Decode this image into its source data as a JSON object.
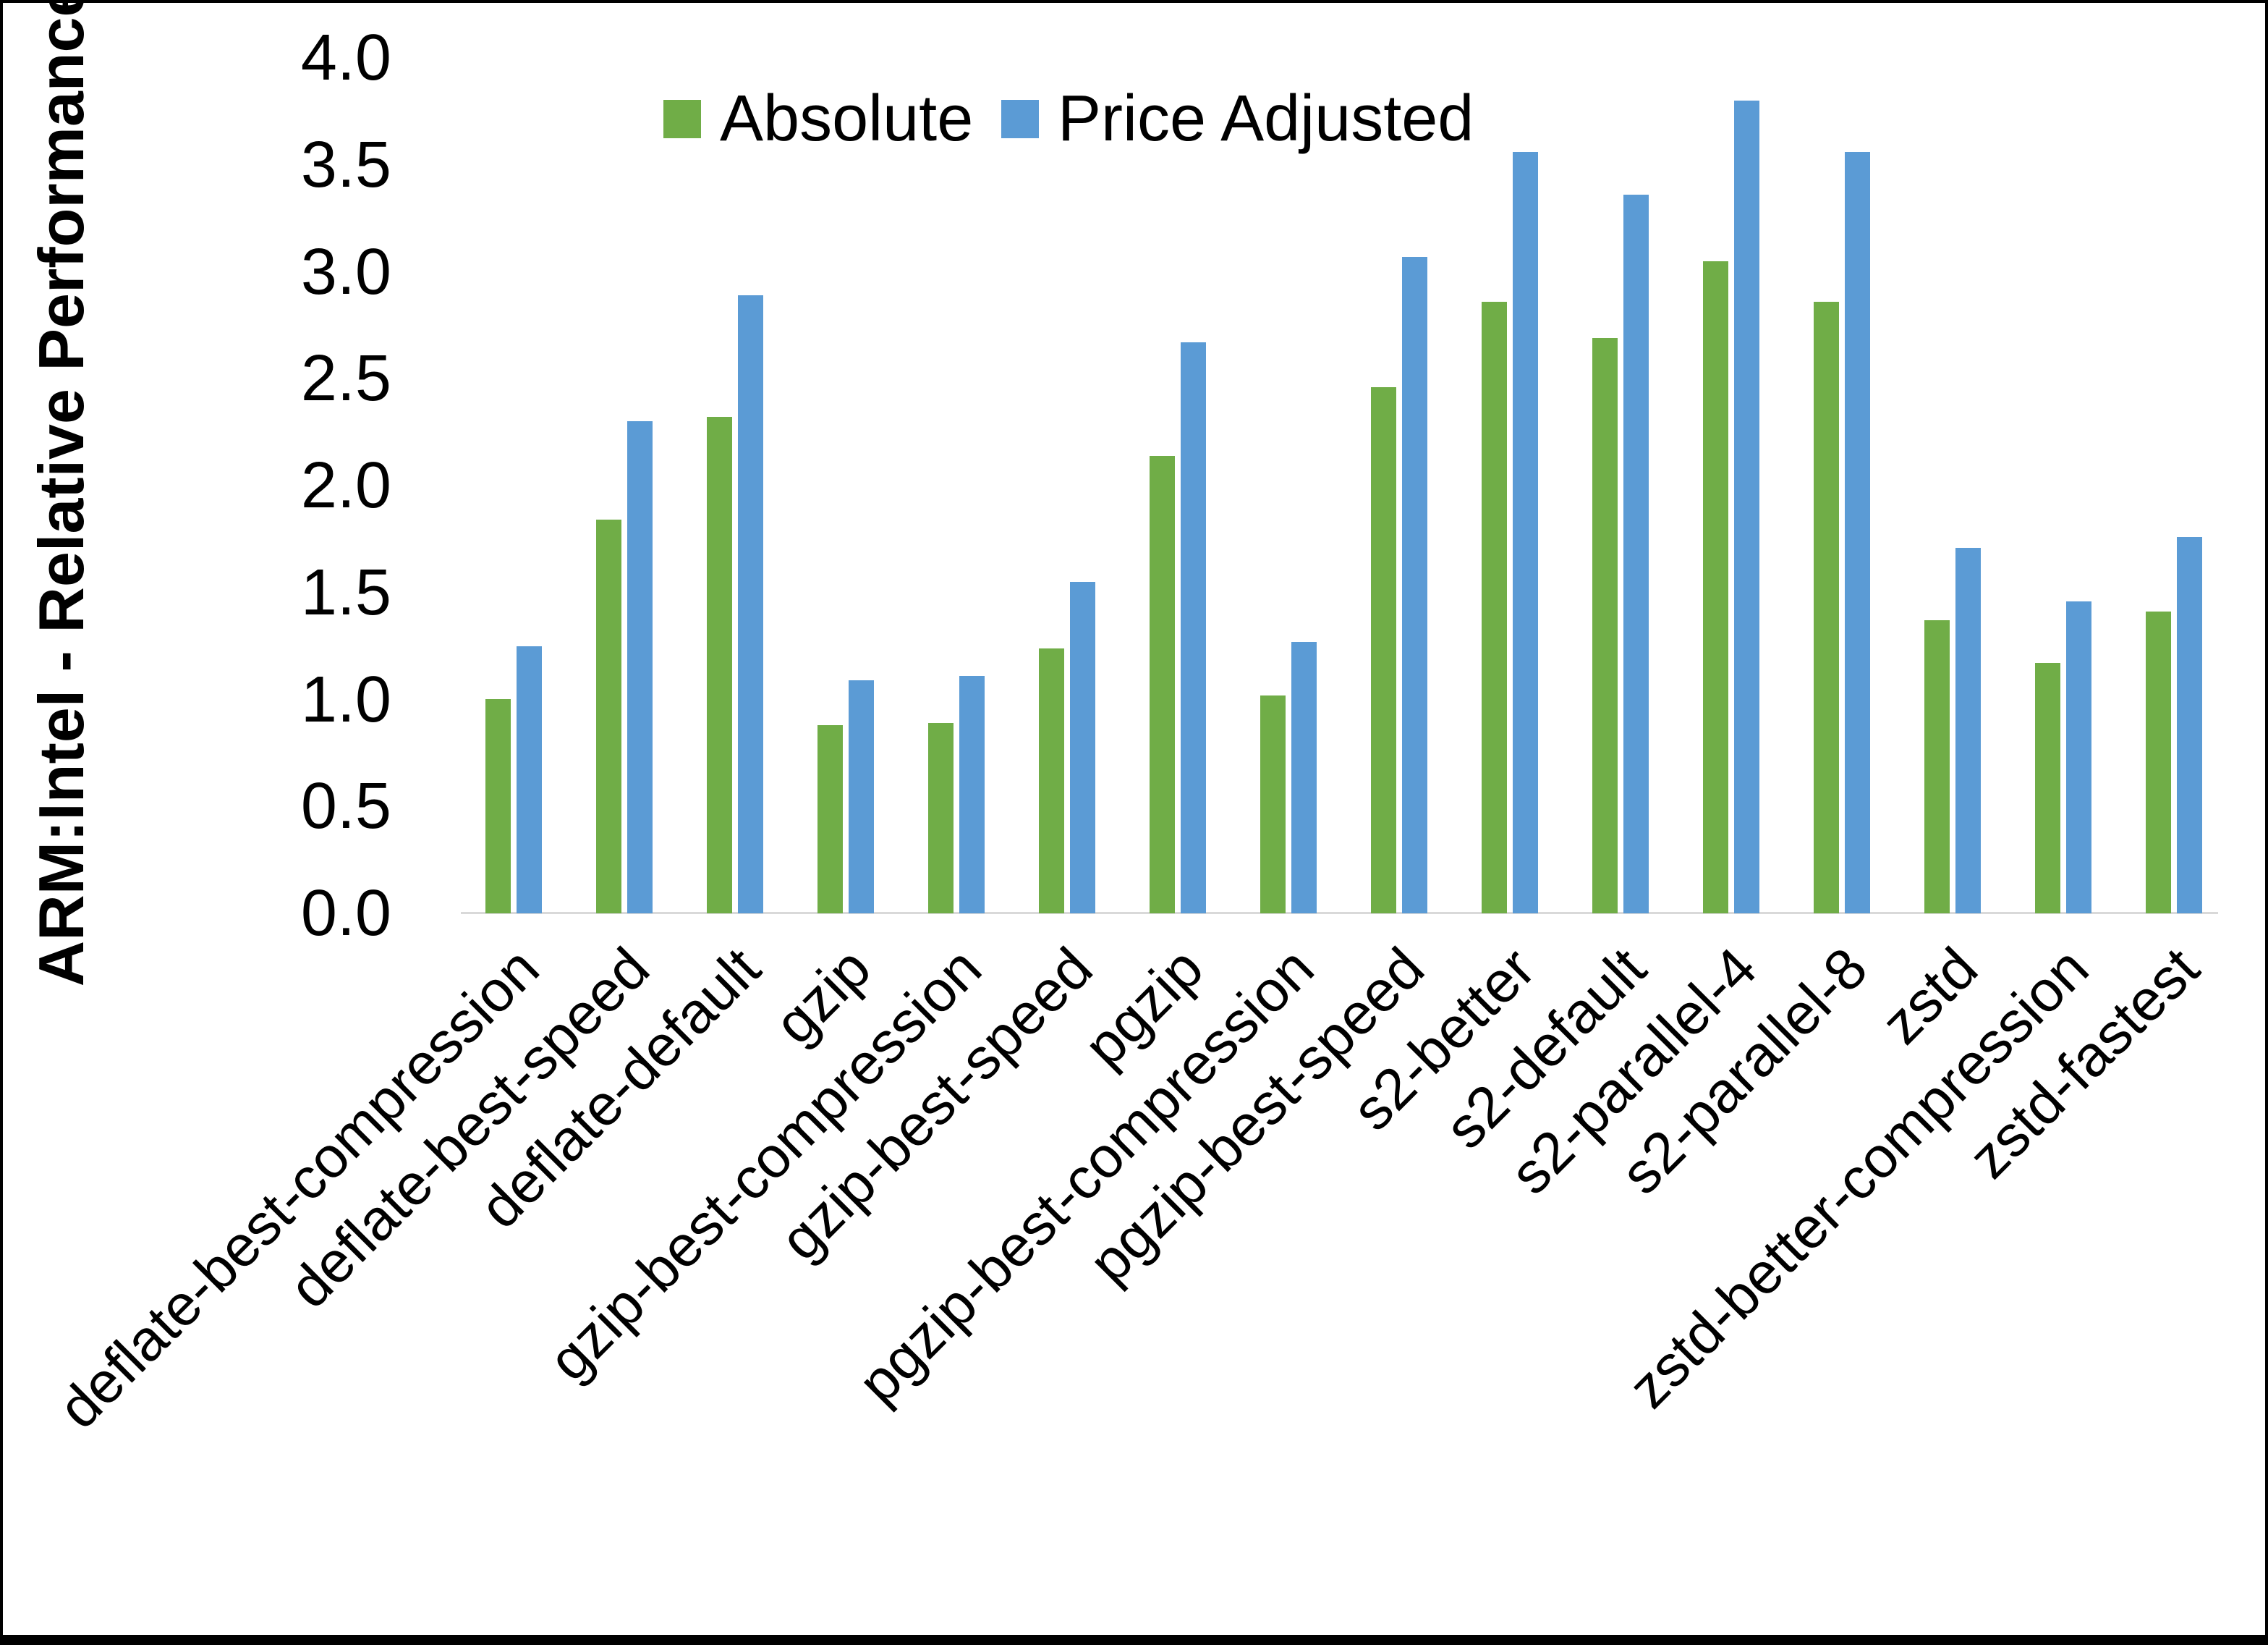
{
  "chart_data": {
    "type": "bar",
    "title": "",
    "xlabel": "",
    "ylabel": "ARM:Intel - Relative Performance",
    "ylim": [
      0.0,
      4.0
    ],
    "ytick_step": 0.5,
    "yticks": [
      "0.0",
      "0.5",
      "1.0",
      "1.5",
      "2.0",
      "2.5",
      "3.0",
      "3.5",
      "4.0"
    ],
    "grid": false,
    "legend_position": "top-center",
    "background_color": "#FFFFFF",
    "axis_line_color": "#D9D9D9",
    "text_color": "#000000",
    "categories": [
      "deflate-best-compression",
      "deflate-best-speed",
      "deflate-default",
      "gzip",
      "gzip-best-compression",
      "gzip-best-speed",
      "pgzip",
      "pgzip-best-compression",
      "pgzip-best-speed",
      "s2-better",
      "s2-default",
      "s2-parallel-4",
      "s2-parallel-8",
      "zstd",
      "zstd-better-compression",
      "zstd-fastest"
    ],
    "series": [
      {
        "name": "Absolute",
        "color": "#70AD47",
        "values": [
          1.0,
          1.84,
          2.32,
          0.88,
          0.89,
          1.24,
          2.14,
          1.02,
          2.46,
          2.86,
          2.69,
          3.05,
          2.86,
          1.37,
          1.17,
          1.41
        ]
      },
      {
        "name": "Price Adjusted",
        "color": "#5B9BD5",
        "values": [
          1.25,
          2.3,
          2.89,
          1.09,
          1.11,
          1.55,
          2.67,
          1.27,
          3.07,
          3.56,
          3.36,
          3.8,
          3.56,
          1.71,
          1.46,
          1.76
        ]
      }
    ]
  }
}
